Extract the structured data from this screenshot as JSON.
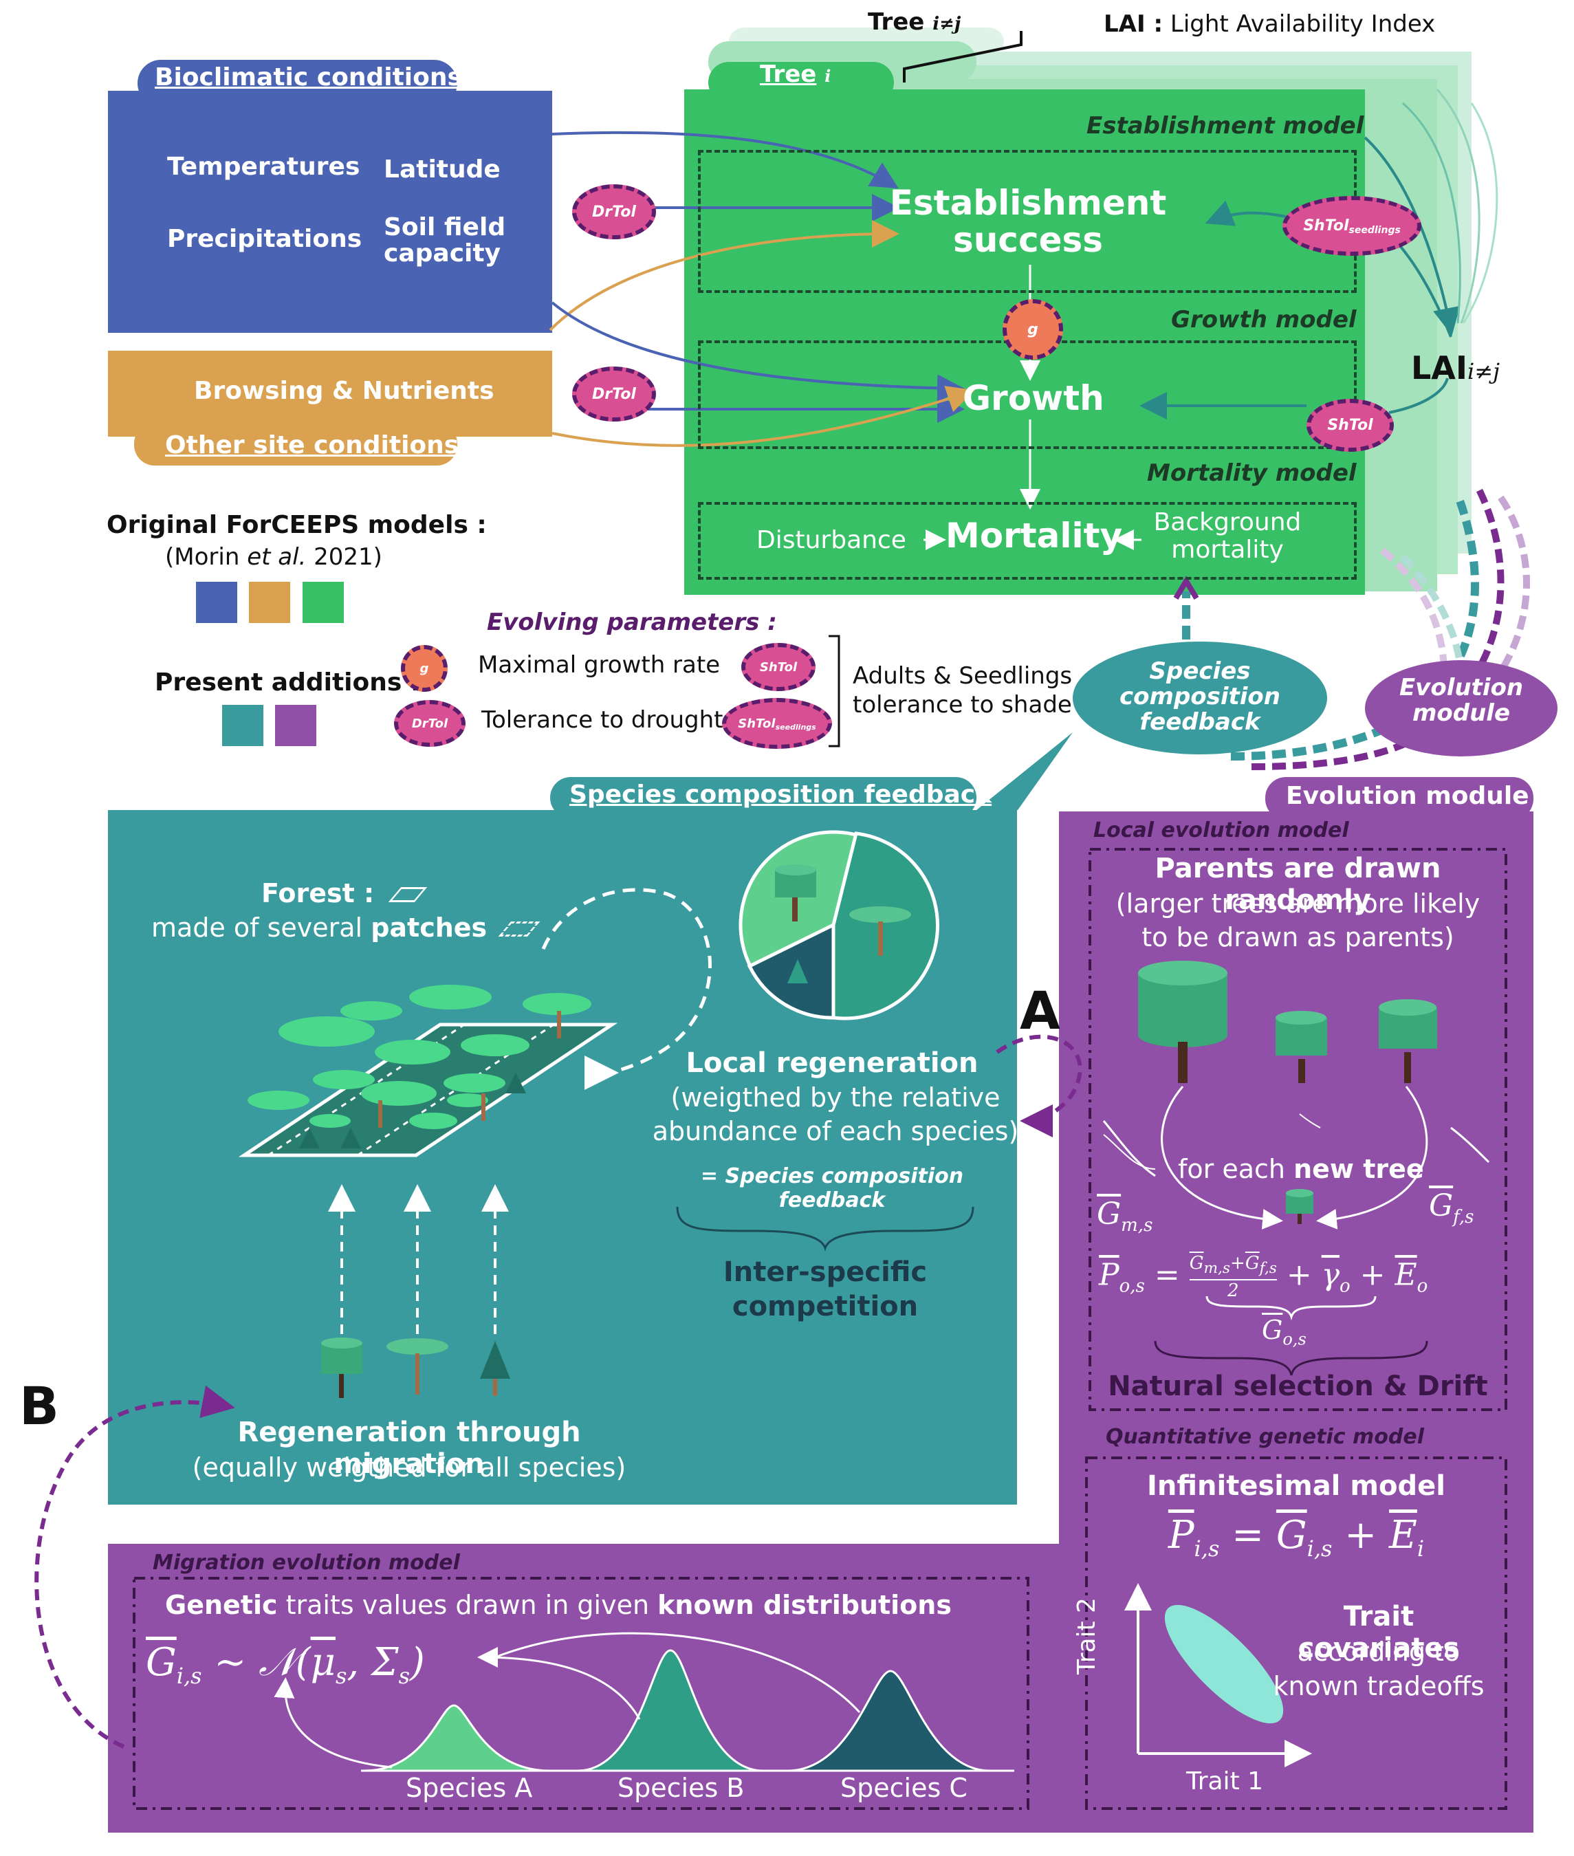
{
  "header": {
    "tree_j_label": "Tree",
    "tree_j_sub": "i≠j",
    "lai_key": "LAI :",
    "lai_def": "Light Availability Index",
    "tree_i_label": "Tree",
    "tree_i_sub": "i"
  },
  "bioclimatic": {
    "title": "Bioclimatic conditions",
    "temperatures": "Temperatures",
    "latitude": "Latitude",
    "precipitations": "Precipitations",
    "soil_field": "Soil field",
    "capacity": "capacity"
  },
  "site": {
    "browsing": "Browsing & Nutrients",
    "title": "Other site conditions"
  },
  "tree_models": {
    "establishment_model": "Establishment model",
    "establishment_1": "Establishment",
    "establishment_2": "success",
    "growth_model": "Growth model",
    "growth": "Growth",
    "mortality_model": "Mortality model",
    "disturbance": "Disturbance",
    "mortality": "Mortality",
    "background_1": "Background",
    "background_2": "mortality",
    "lai_label": "LAI",
    "lai_sub": "i≠j"
  },
  "badges": {
    "drtol": "DrTol",
    "g": "g",
    "shtol": "ShTol",
    "shtol_seed": "ShTol",
    "shtol_seed_sub": "seedlings"
  },
  "legend": {
    "original_title": "Original ForCEEPS models :",
    "citation_pre": "(Morin ",
    "citation_etal": "et al.",
    "citation_post": " 2021)",
    "present_title": "Present additions :",
    "evolving_title": "Evolving parameters :",
    "max_growth": "Maximal growth rate",
    "tolerance_drought": "Tolerance to drought",
    "adults_1": "Adults & Seedlings",
    "adults_2": "tolerance to shade",
    "colors": {
      "blue": "#4a63b3",
      "orange": "#d9a150",
      "green": "#38c066",
      "teal": "#3a9b9f",
      "purple": "#9150a7"
    }
  },
  "bubbles": {
    "species_1": "Species",
    "species_2": "composition",
    "species_3": "feedback",
    "evolution_1": "Evolution",
    "evolution_2": "module"
  },
  "species_panel": {
    "title": "Species composition feedback",
    "forest_bold": "Forest :",
    "made_of": "made of several ",
    "patches": "patches",
    "local_regen": "Local regeneration",
    "weighted_1": "(weigthed by the relative",
    "weighted_2": "abundance of each species)",
    "feedback_eq": "= Species composition feedback",
    "inter_1": "Inter-specific",
    "inter_2": "competition",
    "regen_migration": "Regeneration through migration",
    "equally": "(equally weigthed for all species)"
  },
  "evolution_panel": {
    "title": "Evolution module",
    "local_model": "Local evolution model",
    "parents_title": "Parents are drawn randomly",
    "parents_1": "(larger trees are more likely",
    "parents_2": "to be drawn as parents)",
    "for_each": "for each ",
    "new_tree": "new tree",
    "gm": "G",
    "gm_sub": "m,s",
    "gf": "G",
    "gf_sub": "f,s",
    "po_eq": "P",
    "natural_selection": "Natural selection & Drift",
    "quant_model": "Quantitative genetic model",
    "infinitesimal": "Infinitesimal model",
    "trait_cov": "Trait covariates",
    "according_1": "according to",
    "according_2": "known tradeoffs",
    "trait1": "Trait 1",
    "trait2": "Trait 2"
  },
  "migration_panel": {
    "title": "Migration evolution model",
    "genetic": "Genetic",
    "traits_text": " traits values drawn in given ",
    "known": "known distributions",
    "species_a": "Species A",
    "species_b": "Species B",
    "species_c": "Species C"
  },
  "labels": {
    "a": "A",
    "b": "B"
  }
}
